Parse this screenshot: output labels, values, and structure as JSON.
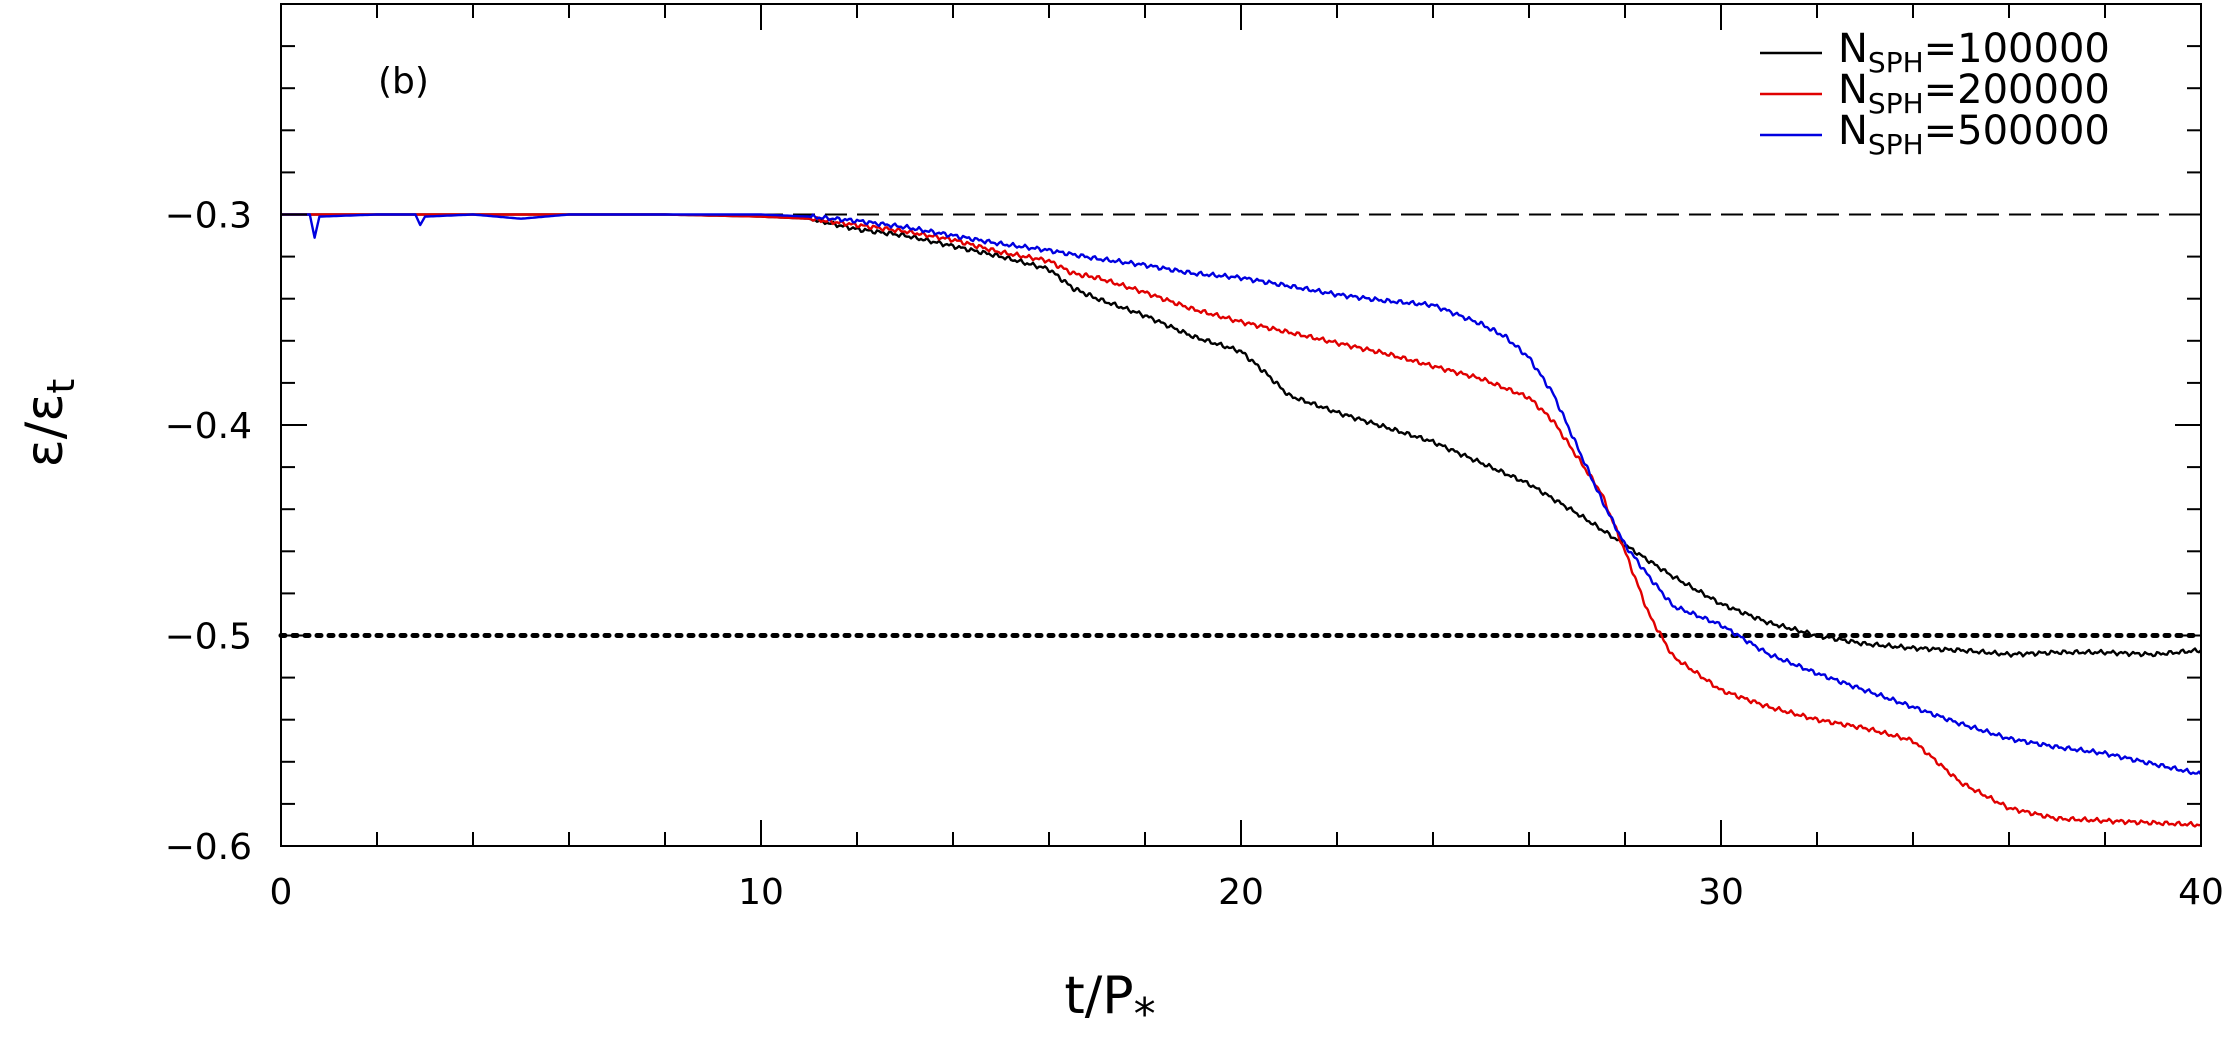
{
  "chart_data": {
    "type": "line",
    "panel_label": "(b)",
    "xlabel": {
      "main": "t/P",
      "sub": "*"
    },
    "ylabel": {
      "main": "ε/ε",
      "sub": "t"
    },
    "xlim": [
      0,
      40
    ],
    "ylim": [
      -0.6,
      -0.2
    ],
    "x_ticks": [
      0,
      10,
      20,
      30,
      40
    ],
    "x_tick_labels": [
      "0",
      "10",
      "20",
      "30",
      "40"
    ],
    "y_ticks": [
      -0.3,
      -0.4,
      -0.5,
      -0.6
    ],
    "y_tick_labels": [
      "−0.3",
      "−0.4",
      "−0.5",
      "−0.6"
    ],
    "grid": false,
    "legend_position": "top-right",
    "reference_lines": [
      {
        "y": -0.3,
        "style": "dashed"
      },
      {
        "y": -0.5,
        "style": "dotted"
      }
    ],
    "series": [
      {
        "name": "N",
        "name_sub": "SPH",
        "name_value": "=100000",
        "color": "#000000",
        "x": [
          0,
          2,
          4,
          6,
          8,
          10,
          11,
          12,
          13,
          14,
          15,
          16,
          16.5,
          17,
          18,
          19,
          20,
          20.5,
          21,
          22,
          23,
          24,
          25,
          26,
          27,
          28,
          29,
          30,
          31,
          32,
          33,
          34,
          35,
          36,
          37,
          38,
          39,
          40
        ],
        "y": [
          -0.3,
          -0.3,
          -0.3,
          -0.3,
          -0.3,
          -0.301,
          -0.302,
          -0.307,
          -0.31,
          -0.315,
          -0.32,
          -0.326,
          -0.335,
          -0.34,
          -0.348,
          -0.358,
          -0.365,
          -0.375,
          -0.386,
          -0.394,
          -0.401,
          -0.408,
          -0.418,
          -0.428,
          -0.442,
          -0.457,
          -0.472,
          -0.485,
          -0.494,
          -0.5,
          -0.504,
          -0.506,
          -0.507,
          -0.509,
          -0.508,
          -0.508,
          -0.509,
          -0.507
        ]
      },
      {
        "name": "N",
        "name_sub": "SPH",
        "name_value": "=200000",
        "color": "#e00000",
        "x": [
          0,
          2,
          4,
          6,
          8,
          10,
          11,
          12,
          13,
          14,
          15,
          16,
          16.5,
          17,
          18,
          19,
          20,
          21,
          22,
          23,
          24,
          25,
          26,
          26.5,
          27,
          27.5,
          28,
          28.5,
          29,
          30,
          31,
          32,
          33,
          34,
          35,
          36,
          37,
          38,
          39,
          40
        ],
        "y": [
          -0.3,
          -0.3,
          -0.3,
          -0.3,
          -0.3,
          -0.301,
          -0.302,
          -0.305,
          -0.308,
          -0.312,
          -0.318,
          -0.322,
          -0.328,
          -0.33,
          -0.337,
          -0.345,
          -0.351,
          -0.356,
          -0.361,
          -0.366,
          -0.372,
          -0.378,
          -0.387,
          -0.398,
          -0.415,
          -0.432,
          -0.46,
          -0.49,
          -0.51,
          -0.526,
          -0.534,
          -0.54,
          -0.544,
          -0.55,
          -0.57,
          -0.582,
          -0.587,
          -0.588,
          -0.589,
          -0.59
        ]
      },
      {
        "name": "N",
        "name_sub": "SPH",
        "name_value": "=500000",
        "color": "#0000e0",
        "x": [
          0,
          0.6,
          0.7,
          0.8,
          2,
          2.8,
          2.9,
          3.0,
          4,
          5,
          6,
          8,
          10,
          11,
          12,
          13,
          14,
          15,
          16,
          17,
          18,
          19,
          20,
          21,
          22,
          23,
          24,
          25,
          25.5,
          26,
          26.5,
          27,
          27.5,
          28,
          28.5,
          29,
          30,
          31,
          32,
          33,
          34,
          35,
          36,
          37,
          38,
          39,
          40
        ],
        "y": [
          -0.3,
          -0.3,
          -0.311,
          -0.301,
          -0.3,
          -0.3,
          -0.305,
          -0.301,
          -0.3,
          -0.302,
          -0.3,
          -0.3,
          -0.3,
          -0.301,
          -0.303,
          -0.306,
          -0.31,
          -0.314,
          -0.317,
          -0.321,
          -0.324,
          -0.328,
          -0.33,
          -0.334,
          -0.338,
          -0.341,
          -0.343,
          -0.352,
          -0.358,
          -0.368,
          -0.385,
          -0.41,
          -0.435,
          -0.457,
          -0.472,
          -0.486,
          -0.495,
          -0.509,
          -0.518,
          -0.526,
          -0.534,
          -0.542,
          -0.549,
          -0.553,
          -0.556,
          -0.561,
          -0.566
        ]
      }
    ]
  }
}
